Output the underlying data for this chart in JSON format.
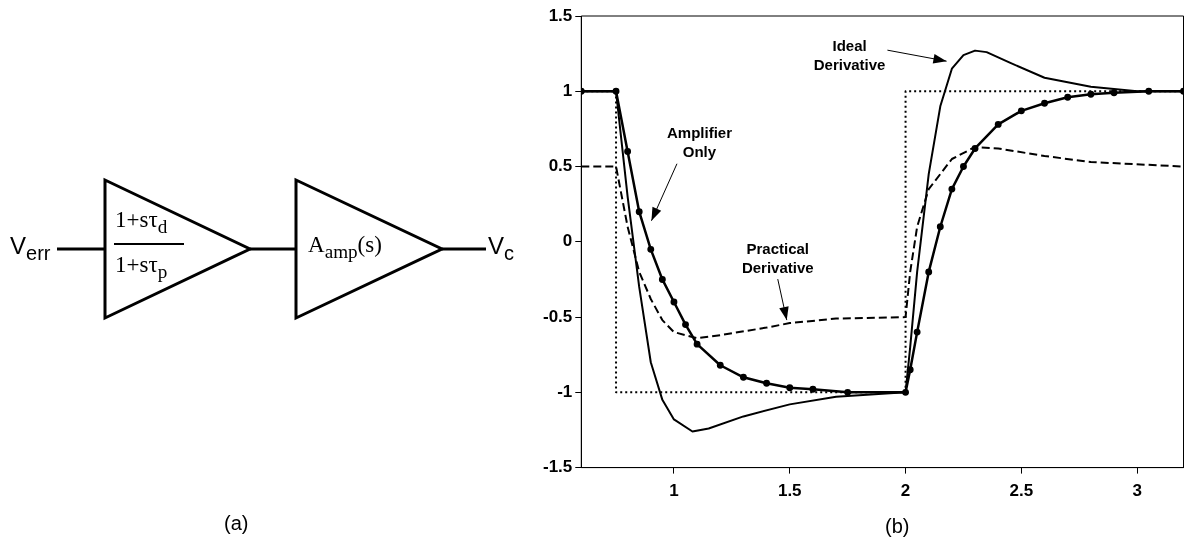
{
  "chart_data": [
    {
      "type": "other",
      "annotations": [
        "V$_{err}$",
        "1+sτ$_{d}$",
        "1+sτ$_{p}$",
        "A$_{amp}$(s)",
        "V$_{c}$",
        "(a)"
      ]
    },
    {
      "type": "line",
      "xlim": [
        0.6,
        3.2
      ],
      "ylim": [
        -1.5,
        1.5
      ],
      "xticks": [
        1,
        1.5,
        2,
        2.5,
        3
      ],
      "yticks": [
        -1.5,
        -1,
        -0.5,
        0,
        0.5,
        1,
        1.5
      ],
      "grid": false,
      "legend": false,
      "series": [
        {
          "color": "#000000",
          "line_style": "dotted",
          "x": [
            0.6,
            0.75,
            0.75,
            2,
            2,
            3.2
          ],
          "values": [
            1,
            1,
            -1,
            -1,
            1,
            1
          ]
        },
        {
          "color": "#000000",
          "line_style": "solid",
          "marker": "circle",
          "x": [
            0.6,
            0.75,
            0.8,
            0.85,
            0.9,
            0.95,
            1.0,
            1.05,
            1.1,
            1.2,
            1.3,
            1.4,
            1.5,
            1.6,
            1.75,
            2,
            2.02,
            2.05,
            2.1,
            2.15,
            2.2,
            2.25,
            2.3,
            2.4,
            2.5,
            2.6,
            2.7,
            2.8,
            2.9,
            3.05,
            3.2
          ],
          "values": [
            1,
            1,
            0.6,
            0.2,
            -0.05,
            -0.25,
            -0.4,
            -0.55,
            -0.68,
            -0.82,
            -0.9,
            -0.94,
            -0.97,
            -0.98,
            -1,
            -1,
            -0.85,
            -0.6,
            -0.2,
            0.1,
            0.35,
            0.5,
            0.62,
            0.78,
            0.87,
            0.92,
            0.96,
            0.98,
            0.99,
            1,
            1
          ]
        },
        {
          "color": "#000000",
          "line_style": "solid",
          "x": [
            0.6,
            0.75,
            0.8,
            0.85,
            0.9,
            0.95,
            1.0,
            1.08,
            1.15,
            1.3,
            1.5,
            1.7,
            2,
            2.02,
            2.05,
            2.1,
            2.15,
            2.2,
            2.25,
            2.3,
            2.35,
            2.45,
            2.6,
            2.8,
            3.0,
            3.2
          ],
          "values": [
            1,
            1,
            0.3,
            -0.3,
            -0.8,
            -1.05,
            -1.18,
            -1.26,
            -1.24,
            -1.16,
            -1.08,
            -1.03,
            -1,
            -0.7,
            -0.2,
            0.45,
            0.9,
            1.15,
            1.24,
            1.27,
            1.26,
            1.19,
            1.09,
            1.03,
            1,
            1
          ]
        },
        {
          "color": "#000000",
          "line_style": "dashed",
          "x": [
            0.6,
            0.75,
            0.8,
            0.85,
            0.9,
            0.95,
            1.0,
            1.1,
            1.2,
            1.4,
            1.5,
            1.7,
            2,
            2.02,
            2.05,
            2.1,
            2.2,
            2.3,
            2.4,
            2.6,
            2.8,
            3.2
          ],
          "values": [
            0.5,
            0.5,
            0.1,
            -0.2,
            -0.38,
            -0.52,
            -0.6,
            -0.64,
            -0.62,
            -0.57,
            -0.54,
            -0.51,
            -0.5,
            -0.2,
            0.1,
            0.35,
            0.55,
            0.63,
            0.62,
            0.57,
            0.53,
            0.5
          ]
        }
      ],
      "annotations": [
        {
          "text": "Amplifier\nOnly",
          "x": 0.89,
          "y": 0.12
        },
        {
          "text": "Practical\nDerivative",
          "x": 1.5,
          "y": -0.54
        },
        {
          "text": "Ideal\nDerivative",
          "x": 2.19,
          "y": 1.18
        },
        "(b)"
      ]
    }
  ]
}
